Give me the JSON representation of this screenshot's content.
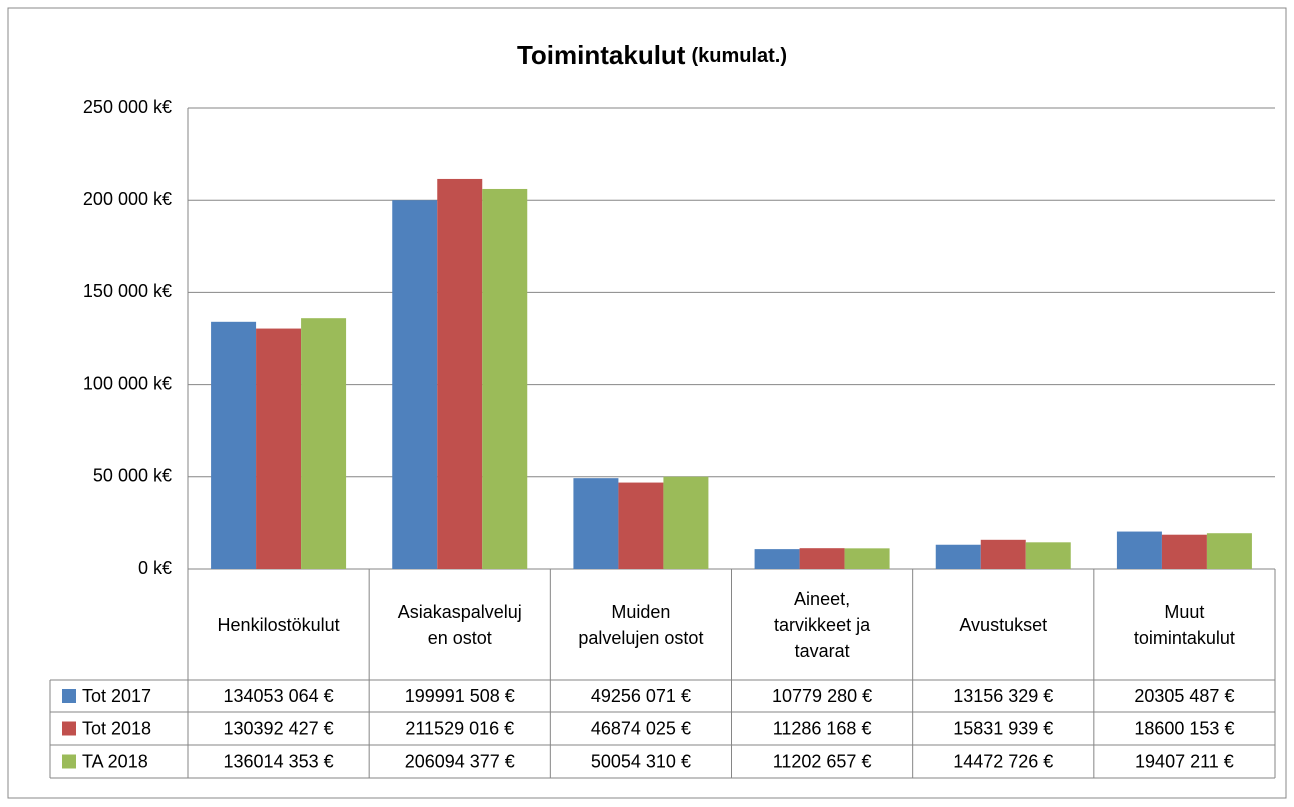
{
  "chart_data": {
    "type": "bar",
    "title": "Toimintakulut",
    "subtitle": "(kumulat.)",
    "categories": [
      "Henkilostökulut",
      "Asiakaspalvelujen ostot",
      "Muiden palvelujen ostot",
      "Aineet, tarvikkeet ja tavarat",
      "Avustukset",
      "Muut toimintakulut"
    ],
    "series": [
      {
        "name": "Tot 2017",
        "color": "#4f81bd",
        "values": [
          134053.064,
          199991.508,
          49256.071,
          10779.28,
          13156.329,
          20305.487
        ],
        "value_labels": [
          "134053 064 €",
          "199991 508 €",
          "49256 071 €",
          "10779 280 €",
          "13156 329 €",
          "20305 487 €"
        ]
      },
      {
        "name": "Tot 2018",
        "color": "#c0504d",
        "values": [
          130392.427,
          211529.016,
          46874.025,
          11286.168,
          15831.939,
          18600.153
        ],
        "value_labels": [
          "130392 427 €",
          "211529 016 €",
          "46874 025 €",
          "11286 168 €",
          "15831 939 €",
          "18600 153 €"
        ]
      },
      {
        "name": "TA 2018",
        "color": "#9bbb59",
        "values": [
          136014.353,
          206094.377,
          50054.31,
          11202.657,
          14472.726,
          19407.211
        ],
        "value_labels": [
          "136014 353 €",
          "206094 377 €",
          "50054 310 €",
          "11202 657 €",
          "14472 726 €",
          "19407 211 €"
        ]
      }
    ],
    "ylim": [
      0,
      250000
    ],
    "yticks": [
      {
        "value": 0,
        "label": "0 k€"
      },
      {
        "value": 50000,
        "label": "50 000 k€"
      },
      {
        "value": 100000,
        "label": "100 000 k€"
      },
      {
        "value": 150000,
        "label": "150 000 k€"
      },
      {
        "value": 200000,
        "label": "200 000 k€"
      },
      {
        "value": 250000,
        "label": "250 000 k€"
      }
    ],
    "grid": true
  }
}
